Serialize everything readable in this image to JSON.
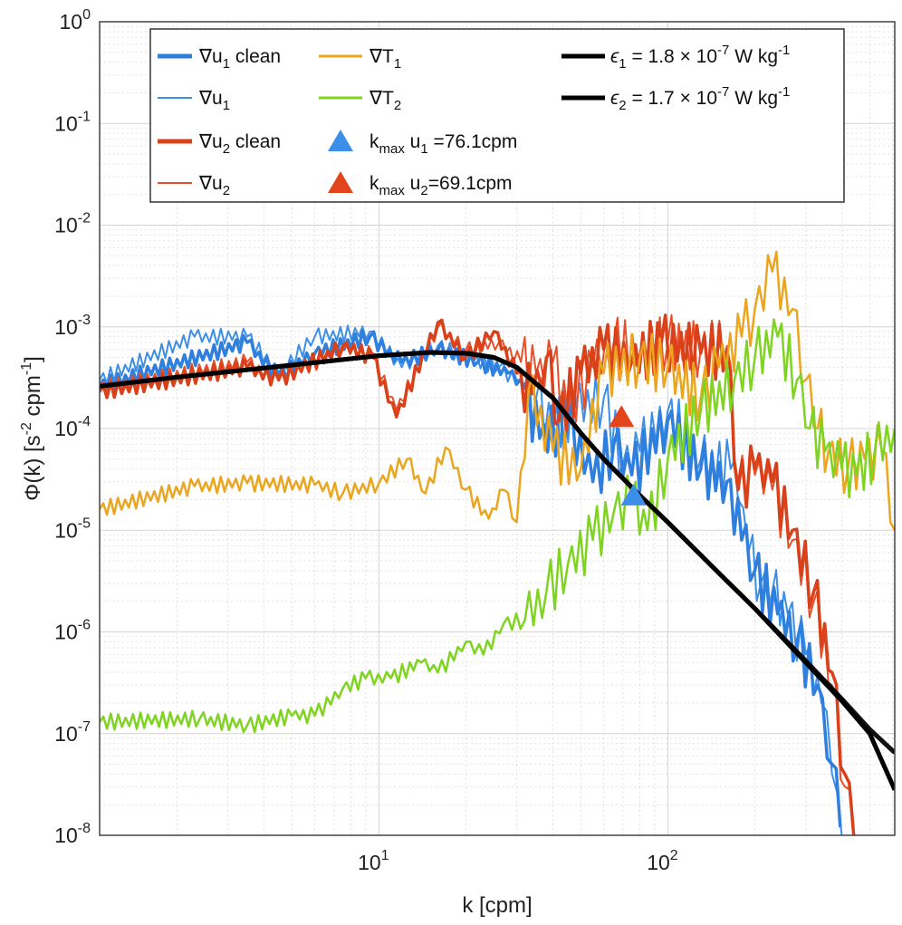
{
  "chart_data": {
    "type": "line",
    "title": "",
    "xlabel": "k [cpm]",
    "ylabel": "Φ(k) [s⁻² cpm⁻¹]",
    "xscale": "log",
    "yscale": "log",
    "xlim": [
      1.08,
      610
    ],
    "ylim": [
      1e-08,
      1
    ],
    "grid": true,
    "legend_position": "top",
    "x_ticks": [
      {
        "value": 10,
        "base": "10",
        "exp": "1"
      },
      {
        "value": 100,
        "base": "10",
        "exp": "2"
      }
    ],
    "y_ticks": [
      {
        "value": 1,
        "base": "10",
        "exp": "0"
      },
      {
        "value": 0.1,
        "base": "10",
        "exp": "-1"
      },
      {
        "value": 0.01,
        "base": "10",
        "exp": "-2"
      },
      {
        "value": 0.001,
        "base": "10",
        "exp": "-3"
      },
      {
        "value": 0.0001,
        "base": "10",
        "exp": "-4"
      },
      {
        "value": 1e-05,
        "base": "10",
        "exp": "-5"
      },
      {
        "value": 1e-06,
        "base": "10",
        "exp": "-6"
      },
      {
        "value": 1e-07,
        "base": "10",
        "exp": "-7"
      },
      {
        "value": 1e-08,
        "base": "10",
        "exp": "-8"
      }
    ],
    "series": [
      {
        "name": "∇u₁",
        "label_main": "∇u",
        "label_sub": "1",
        "label_tail": "",
        "color": "#3b8fe8",
        "width": 2,
        "points": [
          [
            1.08,
            0.0003
          ],
          [
            2.3,
            0.0008
          ],
          [
            3.5,
            0.0008
          ],
          [
            4.5,
            0.00035
          ],
          [
            6,
            0.0008
          ],
          [
            9.3,
            0.0009
          ],
          [
            12,
            0.0004
          ],
          [
            16,
            0.00065
          ],
          [
            20,
            0.0005
          ],
          [
            26,
            0.0004
          ],
          [
            30,
            0.0003
          ],
          [
            35,
            0.0002
          ],
          [
            40,
            0.0001
          ],
          [
            48,
            0.00016
          ],
          [
            60,
            0.0002
          ],
          [
            70,
            4.5e-05
          ],
          [
            80,
            6e-05
          ],
          [
            100,
            0.00015
          ],
          [
            130,
            5e-05
          ],
          [
            165,
            4e-05
          ],
          [
            175,
            2e-05
          ],
          [
            190,
            6e-06
          ],
          [
            210,
            3e-06
          ],
          [
            230,
            2.5e-06
          ],
          [
            260,
            1.5e-06
          ],
          [
            300,
            6e-07
          ],
          [
            340,
            2e-07
          ],
          [
            370,
            4e-08
          ],
          [
            400,
            1e-08
          ]
        ]
      },
      {
        "name": "∇u₁ clean",
        "label_main": "∇u",
        "label_sub": "1",
        "label_tail": " clean",
        "color": "#2f7fde",
        "width": 3.5,
        "points": [
          [
            1.08,
            0.00026
          ],
          [
            3.5,
            0.0007
          ],
          [
            4.5,
            0.00032
          ],
          [
            6,
            0.00055
          ],
          [
            9.3,
            0.0008
          ],
          [
            12,
            0.00045
          ],
          [
            16,
            0.0006
          ],
          [
            22,
            0.00045
          ],
          [
            28,
            0.00035
          ],
          [
            32,
            0.00025
          ],
          [
            36,
            8e-05
          ],
          [
            45,
            0.00012
          ],
          [
            55,
            3e-05
          ],
          [
            65,
            7e-05
          ],
          [
            75,
            3.5e-05
          ],
          [
            100,
            0.00012
          ],
          [
            130,
            4e-05
          ],
          [
            160,
            3e-05
          ],
          [
            180,
            8e-06
          ],
          [
            200,
            4e-06
          ],
          [
            240,
            1.5e-06
          ],
          [
            280,
            8e-07
          ],
          [
            330,
            3e-07
          ],
          [
            370,
            5e-08
          ],
          [
            395,
            1.2e-08
          ]
        ]
      },
      {
        "name": "∇u₂",
        "label_main": "∇u",
        "label_sub": "2",
        "label_tail": "",
        "color": "#e8502a",
        "width": 2,
        "points": [
          [
            1.08,
            0.00025
          ],
          [
            3.5,
            0.00045
          ],
          [
            4.5,
            0.0003
          ],
          [
            7.5,
            0.0006
          ],
          [
            9.5,
            0.00055
          ],
          [
            11.5,
            0.00015
          ],
          [
            16,
            0.001
          ],
          [
            20,
            0.0006
          ],
          [
            26,
            0.0007
          ],
          [
            31,
            0.00045
          ],
          [
            35,
            0.00035
          ],
          [
            40,
            0.00045
          ],
          [
            45,
            0.00015
          ],
          [
            55,
            0.0004
          ],
          [
            65,
            0.0007
          ],
          [
            80,
            0.00055
          ],
          [
            100,
            0.0007
          ],
          [
            130,
            0.0006
          ],
          [
            160,
            0.00065
          ],
          [
            175,
            3e-05
          ],
          [
            200,
            3.5e-05
          ],
          [
            230,
            2.5e-05
          ],
          [
            270,
            8e-06
          ],
          [
            320,
            2e-06
          ],
          [
            370,
            3e-07
          ],
          [
            410,
            3e-08
          ],
          [
            440,
            1e-08
          ]
        ]
      },
      {
        "name": "∇u₂ clean",
        "label_main": "∇u",
        "label_sub": "2",
        "label_tail": " clean",
        "color": "#d9411b",
        "width": 3.5,
        "points": [
          [
            1.08,
            0.00023
          ],
          [
            3.5,
            0.0004
          ],
          [
            4.5,
            0.0003
          ],
          [
            7.5,
            0.00065
          ],
          [
            9.5,
            0.0005
          ],
          [
            11.5,
            0.00013
          ],
          [
            16,
            0.0011
          ],
          [
            20,
            0.0005
          ],
          [
            25,
            0.0009
          ],
          [
            30,
            0.00035
          ],
          [
            34,
            0.00022
          ],
          [
            38,
            0.0005
          ],
          [
            42,
            0.00012
          ],
          [
            50,
            0.00035
          ],
          [
            60,
            0.0006
          ],
          [
            75,
            0.00045
          ],
          [
            95,
            0.0007
          ],
          [
            130,
            0.00055
          ],
          [
            160,
            0.0006
          ],
          [
            175,
            2.5e-05
          ],
          [
            200,
            4e-05
          ],
          [
            230,
            3e-05
          ],
          [
            270,
            1e-05
          ],
          [
            320,
            2.5e-06
          ],
          [
            370,
            4e-07
          ],
          [
            410,
            4e-08
          ],
          [
            440,
            1e-08
          ]
        ]
      },
      {
        "name": "∇T₁",
        "label_main": "∇T",
        "label_sub": "1",
        "label_tail": "",
        "color": "#eba51e",
        "width": 2.5,
        "points": [
          [
            1.08,
            1.6e-05
          ],
          [
            2.3,
            2.7e-05
          ],
          [
            3.5,
            2.9e-05
          ],
          [
            6,
            2.8e-05
          ],
          [
            7.5,
            2.3e-05
          ],
          [
            10,
            2.9e-05
          ],
          [
            12.5,
            5e-05
          ],
          [
            14.5,
            2.3e-05
          ],
          [
            17,
            6.5e-05
          ],
          [
            20,
            2.5e-05
          ],
          [
            24,
            1.3e-05
          ],
          [
            27,
            2.5e-05
          ],
          [
            30,
            1.2e-05
          ],
          [
            33,
            0.00025
          ],
          [
            40,
            6e-05
          ],
          [
            50,
            4e-05
          ],
          [
            60,
            0.00035
          ],
          [
            80,
            0.0005
          ],
          [
            100,
            0.0004
          ],
          [
            130,
            0.0002
          ],
          [
            150,
            0.0004
          ],
          [
            180,
            0.0008
          ],
          [
            200,
            0.0015
          ],
          [
            230,
            0.0035
          ],
          [
            270,
            0.0015
          ],
          [
            300,
            0.0003
          ],
          [
            330,
            0.0001
          ],
          [
            360,
            6e-05
          ],
          [
            420,
            4e-05
          ],
          [
            480,
            5e-05
          ],
          [
            550,
            6e-05
          ],
          [
            610,
            1e-05
          ]
        ]
      },
      {
        "name": "∇T₂",
        "label_main": "∇T",
        "label_sub": "2",
        "label_tail": "",
        "color": "#7fd321",
        "width": 2.5,
        "points": [
          [
            1.08,
            1.3e-07
          ],
          [
            2.4,
            1.4e-07
          ],
          [
            3.5,
            1.2e-07
          ],
          [
            5,
            1.5e-07
          ],
          [
            6,
            1.5e-07
          ],
          [
            7.5,
            2.8e-07
          ],
          [
            9,
            3.5e-07
          ],
          [
            11,
            3.5e-07
          ],
          [
            14,
            5e-07
          ],
          [
            16,
            4e-07
          ],
          [
            20,
            8e-07
          ],
          [
            23,
            6e-07
          ],
          [
            27,
            1.2e-06
          ],
          [
            32,
            1.3e-06
          ],
          [
            38,
            2.5e-06
          ],
          [
            45,
            4.5e-06
          ],
          [
            55,
            8e-06
          ],
          [
            65,
            1.5e-05
          ],
          [
            75,
            2e-05
          ],
          [
            85,
            1e-05
          ],
          [
            100,
            5e-05
          ],
          [
            130,
            0.00015
          ],
          [
            170,
            0.0003
          ],
          [
            200,
            0.0005
          ],
          [
            240,
            0.0008
          ],
          [
            280,
            0.0003
          ],
          [
            310,
            0.0001
          ],
          [
            350,
            6e-05
          ],
          [
            400,
            4e-05
          ],
          [
            450,
            3.5e-05
          ],
          [
            520,
            6e-05
          ],
          [
            610,
            0.0001
          ]
        ]
      },
      {
        "name": "ε₂ = 1.7 × 10⁻⁷ W kg⁻¹",
        "label_main": "",
        "label_sub": "",
        "label_tail": "",
        "color": "#111111",
        "width": 5,
        "model": true,
        "points": [
          [
            1.08,
            0.00026
          ],
          [
            2,
            0.00032
          ],
          [
            5,
            0.00042
          ],
          [
            10,
            0.00052
          ],
          [
            15,
            0.00056
          ],
          [
            20,
            0.00055
          ],
          [
            25,
            0.0005
          ],
          [
            30,
            0.0004
          ],
          [
            40,
            0.0002
          ],
          [
            50,
            9e-05
          ],
          [
            60,
            5e-05
          ],
          [
            80,
            2.2e-05
          ],
          [
            100,
            1.2e-05
          ],
          [
            150,
            3.8e-06
          ],
          [
            200,
            1.7e-06
          ],
          [
            300,
            5.2e-07
          ],
          [
            400,
            2.2e-07
          ],
          [
            500,
            1.1e-07
          ],
          [
            610,
            6.5e-08
          ]
        ]
      },
      {
        "name": "ε₁ = 1.8 × 10⁻⁷ W kg⁻¹",
        "label_main": "",
        "label_sub": "",
        "label_tail": "",
        "color": "#000000",
        "width": 5,
        "model": true,
        "points": [
          [
            1.08,
            0.00026
          ],
          [
            2,
            0.00032
          ],
          [
            5,
            0.00042
          ],
          [
            10,
            0.00052
          ],
          [
            15,
            0.00056
          ],
          [
            20,
            0.00055
          ],
          [
            25,
            0.0005
          ],
          [
            30,
            0.0004
          ],
          [
            40,
            0.0002
          ],
          [
            50,
            9e-05
          ],
          [
            60,
            5e-05
          ],
          [
            80,
            2.2e-05
          ],
          [
            100,
            1.2e-05
          ],
          [
            150,
            3.8e-06
          ],
          [
            200,
            1.7e-06
          ],
          [
            300,
            5e-07
          ],
          [
            400,
            2.1e-07
          ],
          [
            500,
            1e-07
          ],
          [
            610,
            2.8e-08
          ]
        ]
      }
    ],
    "markers": [
      {
        "name": "kmax u1",
        "x": 76.1,
        "y": 2.2e-05,
        "color": "#3b8fe8"
      },
      {
        "name": "kmax u2",
        "x": 69.1,
        "y": 0.00013,
        "color": "#e2451c"
      }
    ],
    "legend": {
      "col1": [
        {
          "main": "∇u",
          "sub": "1",
          "tail": " clean",
          "color": "#2f7fde",
          "thick": true
        },
        {
          "main": "∇u",
          "sub": "1",
          "tail": "",
          "color": "#3b8fe8",
          "thick": false
        },
        {
          "main": "∇u",
          "sub": "2",
          "tail": " clean",
          "color": "#d9411b",
          "thick": true
        },
        {
          "main": "∇u",
          "sub": "2",
          "tail": "",
          "color": "#e8502a",
          "thick": false
        }
      ],
      "col2": [
        {
          "kind": "line",
          "main": "∇T",
          "sub": "1",
          "tail": "",
          "color": "#eba51e"
        },
        {
          "kind": "line",
          "main": "∇T",
          "sub": "2",
          "tail": "",
          "color": "#7fd321"
        },
        {
          "kind": "marker",
          "pre": "k",
          "sub": "max",
          "tail": " u",
          "sub2": "1",
          "post": " =76.1cpm",
          "color": "#3b8fe8"
        },
        {
          "kind": "marker",
          "pre": "k",
          "sub": "max",
          "tail": " u",
          "sub2": "2",
          "post": "=69.1cpm",
          "color": "#e2451c"
        }
      ],
      "col3": [
        {
          "sym": "ϵ",
          "sub": "1",
          "mid": " = 1.8 × 10",
          "exp": "-7",
          "unit": " W kg",
          "uexp": "-1",
          "color": "#000000"
        },
        {
          "sym": "ϵ",
          "sub": "2",
          "mid": " = 1.7 × 10",
          "exp": "-7",
          "unit": " W kg",
          "uexp": "-1",
          "color": "#000000"
        }
      ]
    },
    "ylabel_parts": {
      "main": "Φ(k) [s",
      "exp1": "-2",
      "mid": " cpm",
      "exp2": "-1",
      "end": "]"
    }
  }
}
